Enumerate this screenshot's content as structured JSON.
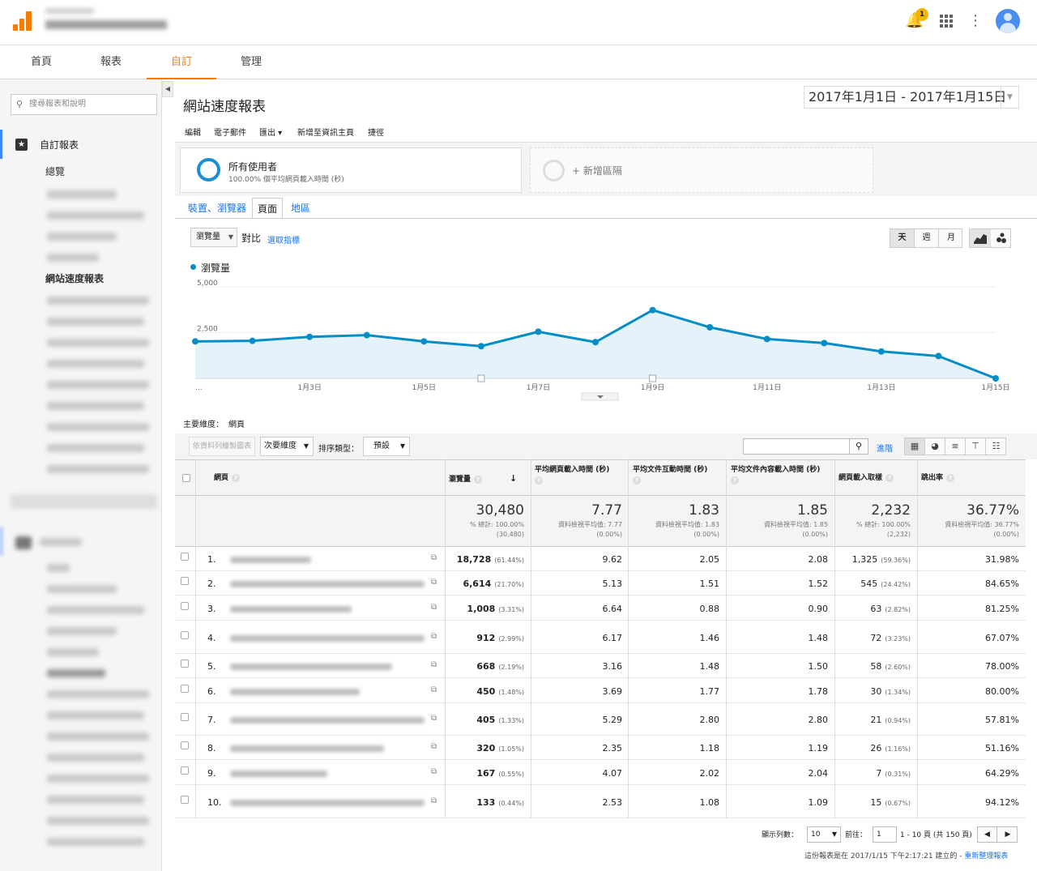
{
  "topbar": {
    "notification_count": "1"
  },
  "nav": {
    "tabs": [
      "首頁",
      "報表",
      "自訂",
      "管理"
    ],
    "active": "自訂"
  },
  "sidebar": {
    "search_placeholder": "搜尋報表和說明",
    "section_title": "自訂報表",
    "overview": "總覽",
    "active_report": "網站速度報表"
  },
  "report": {
    "title": "網站速度報表",
    "date_range": "2017年1月1日 - 2017年1月15日",
    "actions": [
      "編輯",
      "電子郵件",
      "匯出",
      "新增至資訊主頁",
      "捷徑"
    ]
  },
  "segments": {
    "name": "所有使用者",
    "sub": "100.00% 個平均網頁載入時間 (秒)",
    "add_label": "+ 新增區隔"
  },
  "report_tabs": [
    "裝置、瀏覽器",
    "頁面",
    "地區"
  ],
  "controls": {
    "metric": "瀏覽量",
    "compare": "對比",
    "pick_metric": "選取指標",
    "granularity": [
      "天",
      "週",
      "月"
    ]
  },
  "chart_data": {
    "type": "area",
    "series": [
      {
        "name": "瀏覽量",
        "values": [
          2020,
          2050,
          2270,
          2360,
          2020,
          1760,
          2550,
          1980,
          3730,
          2790,
          2150,
          1930,
          1470,
          1220,
          0
        ]
      }
    ],
    "x": [
      "1月1日",
      "1月2日",
      "1月3日",
      "1月4日",
      "1月5日",
      "1月6日",
      "1月7日",
      "1月8日",
      "1月9日",
      "1月10日",
      "1月11日",
      "1月12日",
      "1月13日",
      "1月14日",
      "1月15日"
    ],
    "x_tick_labels": [
      "...",
      "1月3日",
      "1月5日",
      "1月7日",
      "1月9日",
      "1月11日",
      "1月13日",
      "1月15日"
    ],
    "y_tick_labels": [
      "5,000",
      "2,500"
    ],
    "ylim": [
      0,
      5000
    ],
    "color": "#058dc7",
    "fill": "#e5f2f9",
    "legend": "top-left"
  },
  "table_controls": {
    "primary_dim_label": "主要維度：",
    "primary_dim_value": "網頁",
    "plot_rows": "依資料列繪製圖表",
    "secondary_dim": "次要維度",
    "sort_label": "排序類型：",
    "sort_value": "預設",
    "advanced": "進階"
  },
  "columns": [
    "網頁",
    "瀏覽量",
    "平均網頁載入時間 (秒)",
    "平均文件互動時間 (秒)",
    "平均文件內容載入時間 (秒)",
    "網頁載入取樣",
    "跳出率"
  ],
  "totals": {
    "pageviews": "30,480",
    "pageviews_sub1": "% 總計: 100.00%",
    "pageviews_sub2": "(30,480)",
    "load": "7.77",
    "load_sub1": "資料檢視平均值: 7.77",
    "load_sub2": "(0.00%)",
    "interactive": "1.83",
    "interactive_sub1": "資料檢視平均值: 1.83",
    "interactive_sub2": "(0.00%)",
    "content": "1.85",
    "content_sub1": "資料檢視平均值: 1.85",
    "content_sub2": "(0.00%)",
    "samples": "2,232",
    "samples_sub1": "% 總計: 100.00%",
    "samples_sub2": "(2,232)",
    "bounce": "36.77%",
    "bounce_sub1": "資料檢視平均值: 36.77%",
    "bounce_sub2": "(0.00%)"
  },
  "rows": [
    {
      "idx": "1.",
      "pv": "18,728",
      "pv_pct": "(61.44%)",
      "load": "9.62",
      "inter": "2.05",
      "content": "2.08",
      "samples": "1,325",
      "s_pct": "(59.36%)",
      "bounce": "31.98%"
    },
    {
      "idx": "2.",
      "pv": "6,614",
      "pv_pct": "(21.70%)",
      "load": "5.13",
      "inter": "1.51",
      "content": "1.52",
      "samples": "545",
      "s_pct": "(24.42%)",
      "bounce": "84.65%"
    },
    {
      "idx": "3.",
      "pv": "1,008",
      "pv_pct": "(3.31%)",
      "load": "6.64",
      "inter": "0.88",
      "content": "0.90",
      "samples": "63",
      "s_pct": "(2.82%)",
      "bounce": "81.25%"
    },
    {
      "idx": "4.",
      "pv": "912",
      "pv_pct": "(2.99%)",
      "load": "6.17",
      "inter": "1.46",
      "content": "1.48",
      "samples": "72",
      "s_pct": "(3.23%)",
      "bounce": "67.07%"
    },
    {
      "idx": "5.",
      "pv": "668",
      "pv_pct": "(2.19%)",
      "load": "3.16",
      "inter": "1.48",
      "content": "1.50",
      "samples": "58",
      "s_pct": "(2.60%)",
      "bounce": "78.00%"
    },
    {
      "idx": "6.",
      "pv": "450",
      "pv_pct": "(1.48%)",
      "load": "3.69",
      "inter": "1.77",
      "content": "1.78",
      "samples": "30",
      "s_pct": "(1.34%)",
      "bounce": "80.00%"
    },
    {
      "idx": "7.",
      "pv": "405",
      "pv_pct": "(1.33%)",
      "load": "5.29",
      "inter": "2.80",
      "content": "2.80",
      "samples": "21",
      "s_pct": "(0.94%)",
      "bounce": "57.81%"
    },
    {
      "idx": "8.",
      "pv": "320",
      "pv_pct": "(1.05%)",
      "load": "2.35",
      "inter": "1.18",
      "content": "1.19",
      "samples": "26",
      "s_pct": "(1.16%)",
      "bounce": "51.16%"
    },
    {
      "idx": "9.",
      "pv": "167",
      "pv_pct": "(0.55%)",
      "load": "4.07",
      "inter": "2.02",
      "content": "2.04",
      "samples": "7",
      "s_pct": "(0.31%)",
      "bounce": "64.29%"
    },
    {
      "idx": "10.",
      "pv": "133",
      "pv_pct": "(0.44%)",
      "load": "2.53",
      "inter": "1.08",
      "content": "1.09",
      "samples": "15",
      "s_pct": "(0.67%)",
      "bounce": "94.12%"
    }
  ],
  "pager": {
    "rows_label": "顯示列數：",
    "rows_value": "10",
    "goto_label": "前往：",
    "goto_value": "1",
    "range": "1 - 10 頁 (共 150 頁)"
  },
  "footnote": {
    "text": "這份報表是在 2017/1/15 下午2:17:21 建立的 - ",
    "link": "重新整理報表"
  }
}
